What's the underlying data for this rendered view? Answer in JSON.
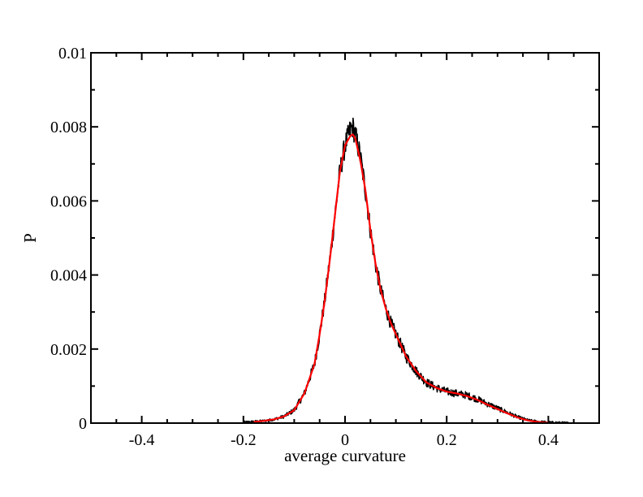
{
  "chart_data": {
    "type": "line",
    "xlabel": "average curvature",
    "ylabel": "P",
    "xlim": [
      -0.5,
      0.5
    ],
    "ylim": [
      0,
      0.01
    ],
    "x_major_ticks": [
      -0.4,
      -0.2,
      0,
      0.2,
      0.4
    ],
    "x_tick_labels": [
      "-0.4",
      "-0.2",
      "0",
      "0.2",
      "0.4"
    ],
    "y_major_ticks": [
      0,
      0.002,
      0.004,
      0.006,
      0.008,
      0.01
    ],
    "y_tick_labels": [
      "0",
      "0.002",
      "0.004",
      "0.006",
      "0.008",
      "0.01"
    ],
    "grid": false,
    "legend": "none",
    "series": [
      {
        "style": "noisy histogram",
        "color": "#000000",
        "x": [
          -0.2,
          -0.18,
          -0.16,
          -0.14,
          -0.12,
          -0.1,
          -0.08,
          -0.06,
          -0.05,
          -0.04,
          -0.03,
          -0.02,
          -0.01,
          0.0,
          0.01,
          0.015,
          0.02,
          0.03,
          0.04,
          0.05,
          0.06,
          0.07,
          0.08,
          0.09,
          0.1,
          0.12,
          0.14,
          0.16,
          0.18,
          0.2,
          0.22,
          0.24,
          0.26,
          0.28,
          0.3,
          0.32,
          0.34,
          0.36,
          0.38,
          0.4,
          0.42,
          0.44
        ],
        "y": [
          2e-05,
          4e-05,
          6e-05,
          0.0001,
          0.00018,
          0.00035,
          0.0008,
          0.0016,
          0.0024,
          0.0033,
          0.0044,
          0.0056,
          0.0068,
          0.0075,
          0.0079,
          0.008,
          0.0078,
          0.0072,
          0.0063,
          0.0052,
          0.0043,
          0.0036,
          0.0031,
          0.0027,
          0.0024,
          0.0018,
          0.0014,
          0.0011,
          0.00095,
          0.00085,
          0.0008,
          0.00075,
          0.00065,
          0.00052,
          0.0004,
          0.00028,
          0.00016,
          8e-05,
          4e-05,
          2e-05,
          1e-05,
          0.0
        ]
      },
      {
        "style": "smooth fit",
        "color": "#ff0000",
        "x": [
          -0.18,
          -0.16,
          -0.14,
          -0.12,
          -0.1,
          -0.08,
          -0.06,
          -0.05,
          -0.04,
          -0.03,
          -0.02,
          -0.01,
          0.0,
          0.01,
          0.015,
          0.02,
          0.03,
          0.04,
          0.05,
          0.06,
          0.07,
          0.08,
          0.09,
          0.1,
          0.12,
          0.14,
          0.16,
          0.18,
          0.2,
          0.22,
          0.24,
          0.26,
          0.28,
          0.3,
          0.32,
          0.34,
          0.36,
          0.38,
          0.4
        ],
        "y": [
          3e-05,
          6e-05,
          0.0001,
          0.00018,
          0.00035,
          0.0008,
          0.0016,
          0.0024,
          0.0033,
          0.0044,
          0.0056,
          0.0068,
          0.0075,
          0.00775,
          0.0078,
          0.0077,
          0.0071,
          0.0063,
          0.0052,
          0.0043,
          0.0036,
          0.0031,
          0.0027,
          0.0024,
          0.0018,
          0.0014,
          0.0011,
          0.00095,
          0.00085,
          0.0008,
          0.00073,
          0.00063,
          0.0005,
          0.00038,
          0.00026,
          0.00015,
          7e-05,
          3e-05,
          1e-05
        ]
      }
    ]
  }
}
